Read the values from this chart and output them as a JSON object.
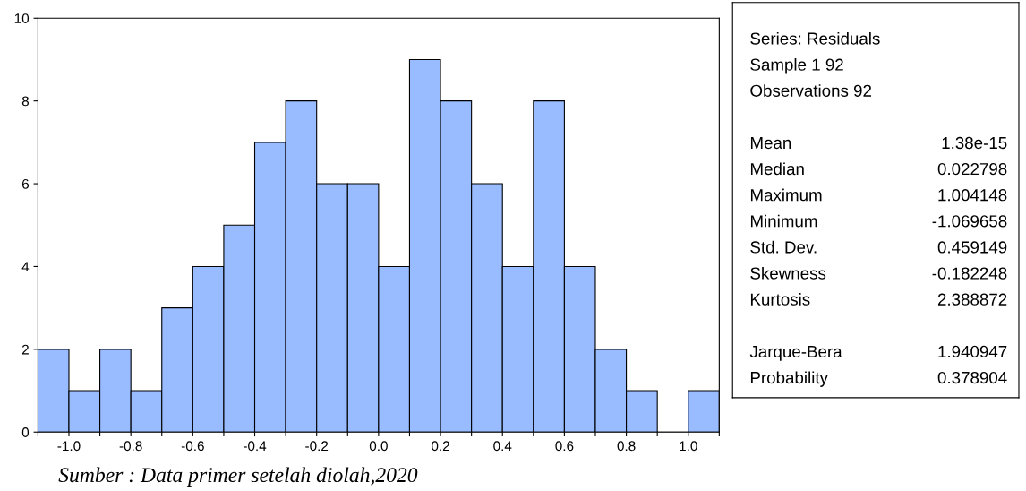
{
  "chart_data": [
    {
      "type": "histogram",
      "bins": [
        -1.1,
        -1.0,
        -0.9,
        -0.8,
        -0.7,
        -0.6,
        -0.5,
        -0.4,
        -0.3,
        -0.2,
        -0.1,
        0.0,
        0.1,
        0.2,
        0.3,
        0.4,
        0.5,
        0.6,
        0.7,
        0.8,
        0.9,
        1.0,
        1.1
      ],
      "values": [
        2,
        1,
        2,
        1,
        3,
        4,
        5,
        7,
        8,
        6,
        6,
        4,
        9,
        8,
        6,
        4,
        8,
        4,
        2,
        1,
        0,
        1
      ],
      "color": "#99bbff",
      "xlim": [
        -1.1,
        1.1
      ],
      "xticks": [
        {
          "value": -1.1,
          "label": null
        },
        {
          "value": -1.0,
          "label": "-1.0"
        },
        {
          "value": -0.9,
          "label": null
        },
        {
          "value": -0.8,
          "label": "-0.8"
        },
        {
          "value": -0.7,
          "label": null
        },
        {
          "value": -0.6,
          "label": "-0.6"
        },
        {
          "value": -0.5,
          "label": null
        },
        {
          "value": -0.4,
          "label": "-0.4"
        },
        {
          "value": -0.3,
          "label": null
        },
        {
          "value": -0.2,
          "label": "-0.2"
        },
        {
          "value": -0.1,
          "label": null
        },
        {
          "value": 0.0,
          "label": "0.0"
        },
        {
          "value": 0.1,
          "label": null
        },
        {
          "value": 0.2,
          "label": "0.2"
        },
        {
          "value": 0.3,
          "label": null
        },
        {
          "value": 0.4,
          "label": "0.4"
        },
        {
          "value": 0.5,
          "label": null
        },
        {
          "value": 0.6,
          "label": "0.6"
        },
        {
          "value": 0.7,
          "label": null
        },
        {
          "value": 0.8,
          "label": "0.8"
        },
        {
          "value": 0.9,
          "label": null
        },
        {
          "value": 1.0,
          "label": "1.0"
        },
        {
          "value": 1.1,
          "label": null
        }
      ],
      "ylim": [
        0,
        10
      ],
      "yticks": [
        0,
        2,
        4,
        6,
        8,
        10
      ],
      "annotations": [
        "Sumber : Data primer setelah diolah,2020"
      ]
    },
    {
      "type": "other",
      "title": "Series: Residuals",
      "annotations": [
        "Sample 1 92",
        "Observations 92"
      ],
      "categories": [
        null,
        "Mean",
        "Median",
        "Maximum",
        "Minimum",
        "Std. Dev.",
        "Skewness",
        "Kurtosis",
        null,
        "Jarque-Bera",
        "Probability"
      ],
      "value_labels": [
        null,
        "1.38e-15",
        "0.022798",
        "1.004148",
        "-1.069658",
        "0.459149",
        "-0.182248",
        "2.388872",
        null,
        "1.940947",
        "0.378904"
      ]
    }
  ]
}
